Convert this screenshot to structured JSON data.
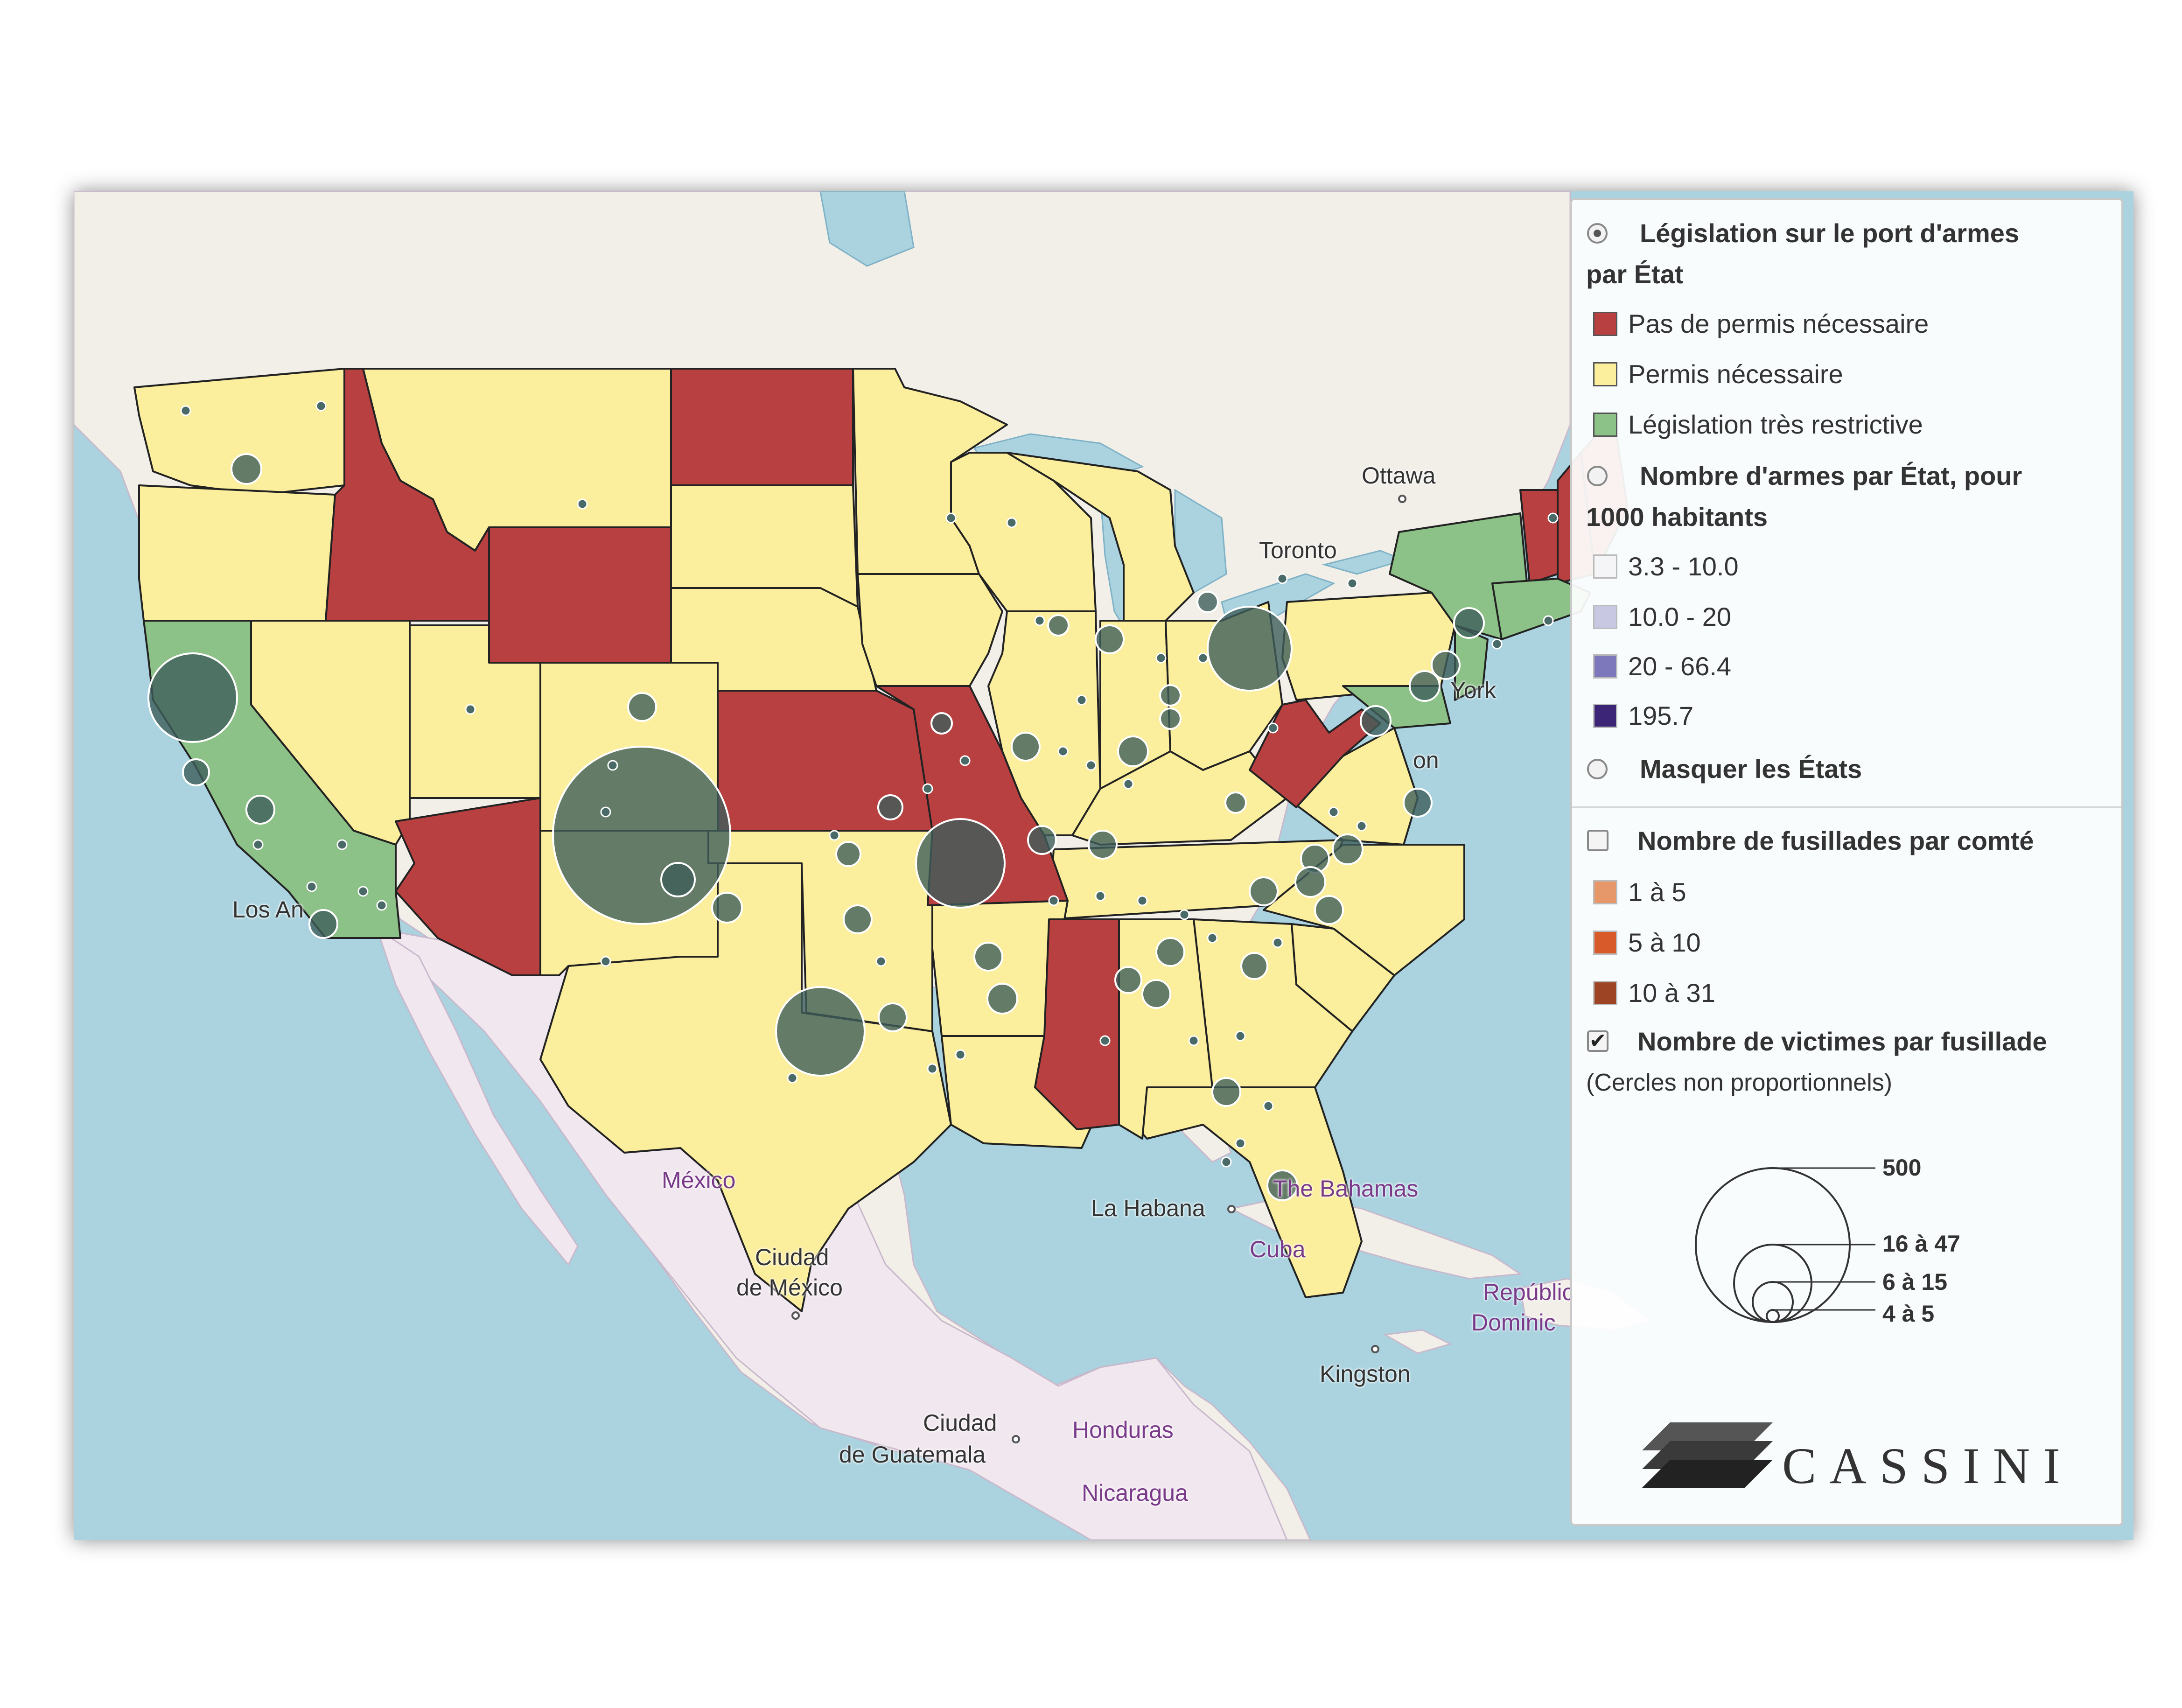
{
  "map": {
    "places": [
      {
        "name": "Ottawa",
        "purple": false,
        "dot": true
      },
      {
        "name": "Toronto",
        "purple": false,
        "dot": false
      },
      {
        "name": "York",
        "purple": false,
        "dot": false
      },
      {
        "name": "on",
        "purple": false,
        "dot": false
      },
      {
        "name": "Los An",
        "purple": false,
        "dot": false
      },
      {
        "name": "México",
        "purple": true,
        "dot": false
      },
      {
        "name": "Ciudad",
        "purple": false,
        "dot": false
      },
      {
        "name": "de México",
        "purple": false,
        "dot": true
      },
      {
        "name": "La Habana",
        "purple": false,
        "dot": true
      },
      {
        "name": "The Bahamas",
        "purple": true,
        "dot": false
      },
      {
        "name": "Cuba",
        "purple": true,
        "dot": false
      },
      {
        "name": "Repúblic",
        "purple": true,
        "dot": false
      },
      {
        "name": "Dominic",
        "purple": true,
        "dot": false
      },
      {
        "name": "Kingston",
        "purple": false,
        "dot": true
      },
      {
        "name": "Ciudad",
        "purple": false,
        "dot": false
      },
      {
        "name": "de Guatemala",
        "purple": false,
        "dot": true
      },
      {
        "name": "Honduras",
        "purple": true,
        "dot": false
      },
      {
        "name": "Nicaragua",
        "purple": true,
        "dot": false
      }
    ],
    "colors": {
      "water": "#aad3df",
      "land": "#f2efe9",
      "mexico_land": "#f1e8ef",
      "no_permit": "#b84040",
      "permit": "#fbee9c",
      "restrictive": "#8cc187",
      "bubble": "#3e5e5a",
      "state_border": "#222222"
    }
  },
  "legend": {
    "section1": {
      "title_line1": "Législation sur le port d'armes",
      "title_line2": "par État",
      "selected": true,
      "items": [
        {
          "label": "Pas de permis nécessaire",
          "color": "#b84040"
        },
        {
          "label": "Permis nécessaire",
          "color": "#fbee9c"
        },
        {
          "label": "Législation très restrictive",
          "color": "#8cc187"
        }
      ]
    },
    "section2": {
      "title_line1": "Nombre d'armes par État, pour",
      "title_line2": "1000 habitants",
      "selected": false,
      "items": [
        {
          "label": "3.3 - 10.0",
          "color": "#f5f5f8"
        },
        {
          "label": "10.0 - 20",
          "color": "#c9c8e2"
        },
        {
          "label": "20 - 66.4",
          "color": "#7d78bb"
        },
        {
          "label": "195.7",
          "color": "#3c2477"
        }
      ]
    },
    "section3": {
      "title": "Masquer les États",
      "selected": false
    },
    "section4": {
      "title": "Nombre de fusillades par comté",
      "checked": false,
      "items": [
        {
          "label": "1 à 5",
          "color": "#e7986a"
        },
        {
          "label": "5 à 10",
          "color": "#d85a2a"
        },
        {
          "label": "10 à 31",
          "color": "#9c4424"
        }
      ]
    },
    "section5": {
      "title": "Nombre de victimes par fusillade",
      "subtitle": "(Cercles non proportionnels)",
      "checked": true,
      "sizes": [
        {
          "label": "500",
          "r": 1.0
        },
        {
          "label": "16 à 47",
          "r": 0.5
        },
        {
          "label": "6 à 15",
          "r": 0.26
        },
        {
          "label": "4 à 5",
          "r": 0.08
        }
      ]
    },
    "brand": "CASSINI"
  }
}
